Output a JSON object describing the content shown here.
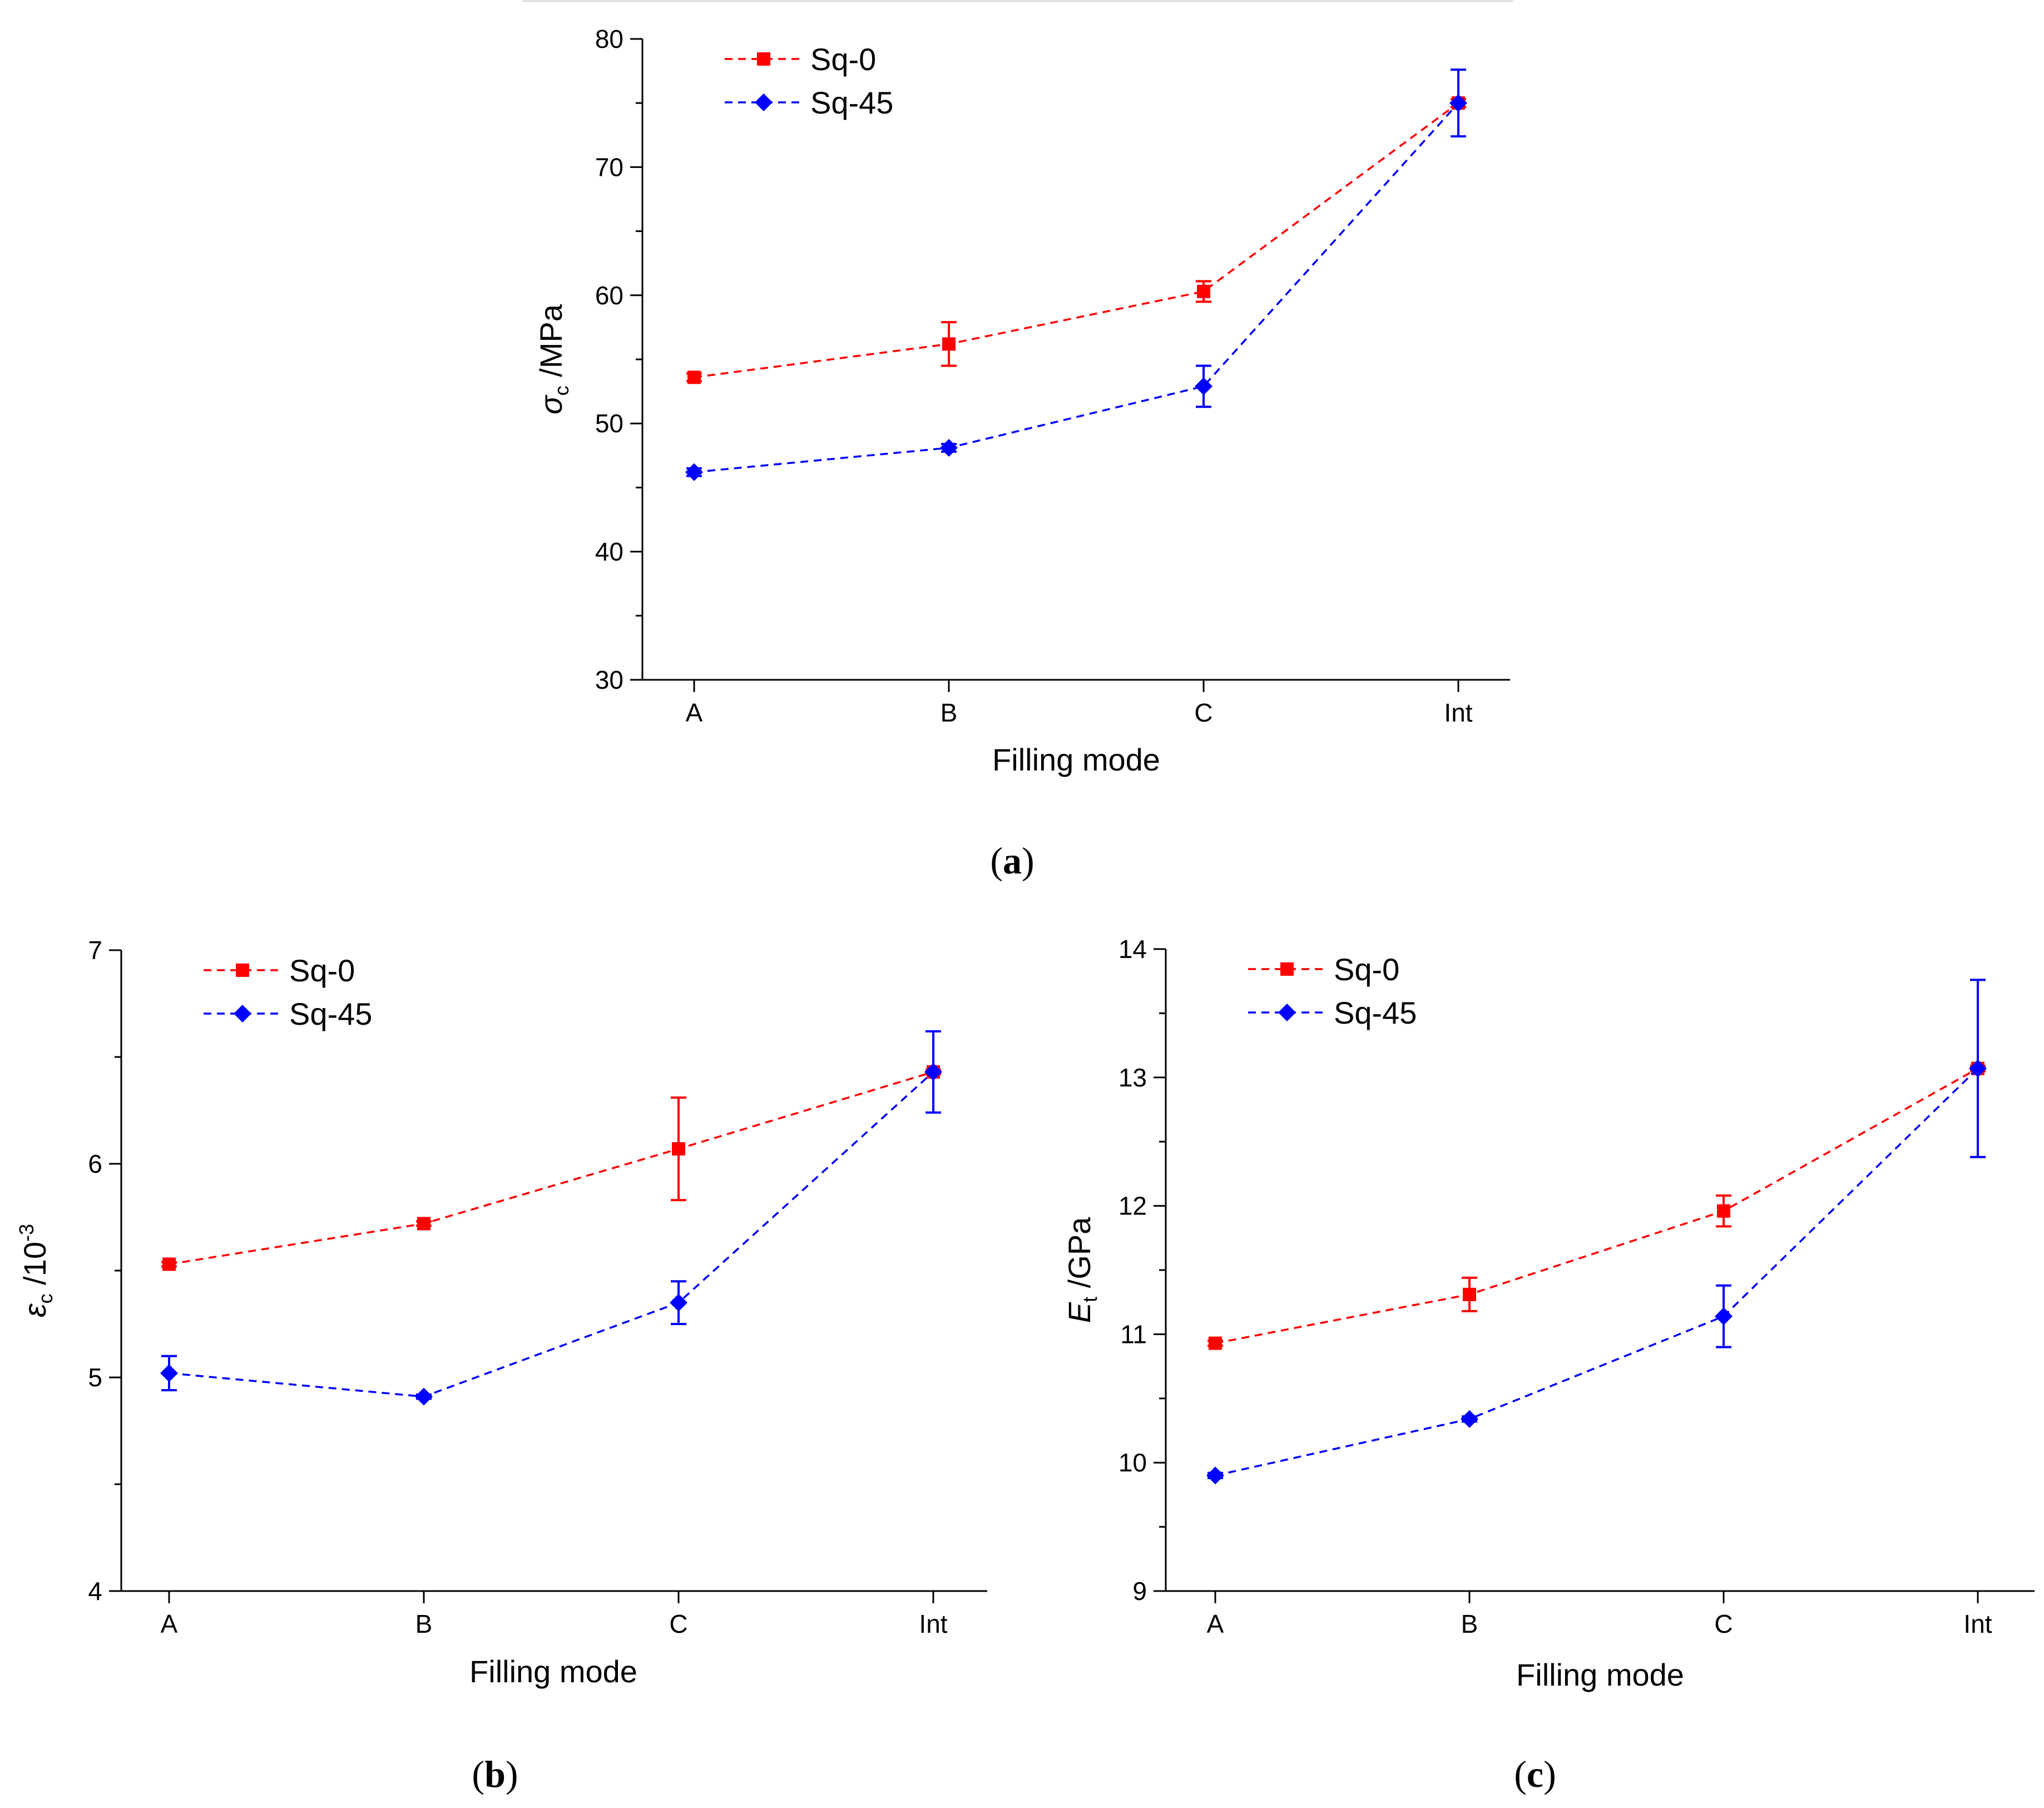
{
  "chart_data": [
    {
      "type": "line",
      "panel_label": "a",
      "categories": [
        "A",
        "B",
        "C",
        "Int"
      ],
      "xlabel": "Filling mode",
      "ylabel_symbol": "σ",
      "ylabel_sub": "c",
      "ylabel_unit": " /MPa",
      "ylim": [
        30,
        80
      ],
      "yticks": [
        "30",
        "40",
        "50",
        "60",
        "70",
        "80"
      ],
      "legend_position": "top-left",
      "grid": false,
      "series": [
        {
          "name": "Sq-0",
          "color": "#ff0000",
          "marker": "square",
          "values": [
            53.6,
            56.2,
            60.3,
            75.0
          ],
          "errors": [
            0.3,
            1.7,
            0.8,
            0.3
          ]
        },
        {
          "name": "Sq-45",
          "color": "#0000ff",
          "marker": "diamond",
          "values": [
            46.2,
            48.1,
            52.9,
            75.0
          ],
          "errors": [
            0.3,
            0.3,
            1.6,
            2.6
          ]
        }
      ]
    },
    {
      "type": "line",
      "panel_label": "b",
      "categories": [
        "A",
        "B",
        "C",
        "Int"
      ],
      "xlabel": "Filling mode",
      "ylabel_symbol": "ε",
      "ylabel_sub": "c",
      "ylabel_unit": " /10",
      "ylabel_sup": "-3",
      "ylim": [
        4,
        7
      ],
      "yticks": [
        "4",
        "5",
        "6",
        "7"
      ],
      "legend_position": "top-left",
      "grid": false,
      "series": [
        {
          "name": "Sq-0",
          "color": "#ff0000",
          "marker": "square",
          "values": [
            5.53,
            5.72,
            6.07,
            6.43
          ],
          "errors": [
            0.01,
            0.01,
            0.24,
            0.01
          ]
        },
        {
          "name": "Sq-45",
          "color": "#0000ff",
          "marker": "diamond",
          "values": [
            5.02,
            4.91,
            5.35,
            6.43
          ],
          "errors": [
            0.08,
            0.01,
            0.1,
            0.19
          ]
        }
      ]
    },
    {
      "type": "line",
      "panel_label": "c",
      "categories": [
        "A",
        "B",
        "C",
        "Int"
      ],
      "xlabel": "Filling mode",
      "ylabel_symbol": "E",
      "ylabel_sub": "t",
      "ylabel_unit": " /GPa",
      "ylim": [
        9,
        14
      ],
      "yticks": [
        "9",
        "10",
        "11",
        "12",
        "13",
        "14"
      ],
      "legend_position": "top-left",
      "grid": false,
      "series": [
        {
          "name": "Sq-0",
          "color": "#ff0000",
          "marker": "square",
          "values": [
            10.93,
            11.31,
            11.96,
            13.07
          ],
          "errors": [
            0.02,
            0.13,
            0.12,
            0.02
          ]
        },
        {
          "name": "Sq-45",
          "color": "#0000ff",
          "marker": "diamond",
          "values": [
            9.9,
            10.34,
            11.14,
            13.07
          ],
          "errors": [
            0.02,
            0.02,
            0.24,
            0.69
          ]
        }
      ]
    }
  ]
}
